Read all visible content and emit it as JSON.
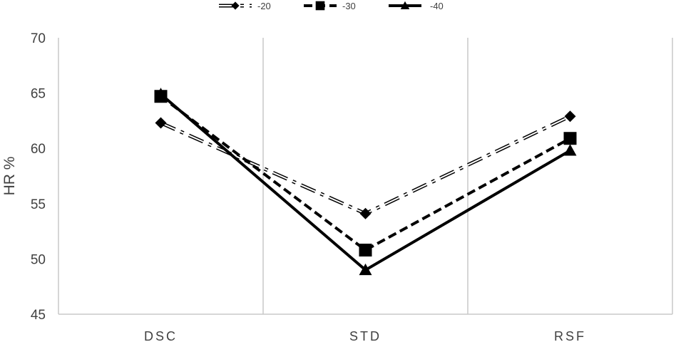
{
  "chart_data": {
    "type": "line",
    "title": "",
    "xlabel": "",
    "ylabel": "HR %",
    "ylim": [
      45,
      70
    ],
    "yticks": [
      45,
      50,
      55,
      60,
      65,
      70
    ],
    "categories": [
      "DSC",
      "STD",
      "RSF"
    ],
    "grid": "vertical",
    "legend_position": "top",
    "series": [
      {
        "name": "-20",
        "values": [
          62.3,
          54.1,
          62.9
        ],
        "marker": "diamond",
        "line": "dash-dot-hollow",
        "color": "#000000"
      },
      {
        "name": "-30",
        "values": [
          64.7,
          50.8,
          60.9
        ],
        "marker": "square",
        "line": "dashed",
        "color": "#000000"
      },
      {
        "name": "-40",
        "values": [
          64.9,
          49.0,
          59.8
        ],
        "marker": "triangle",
        "line": "solid",
        "color": "#000000"
      }
    ]
  }
}
